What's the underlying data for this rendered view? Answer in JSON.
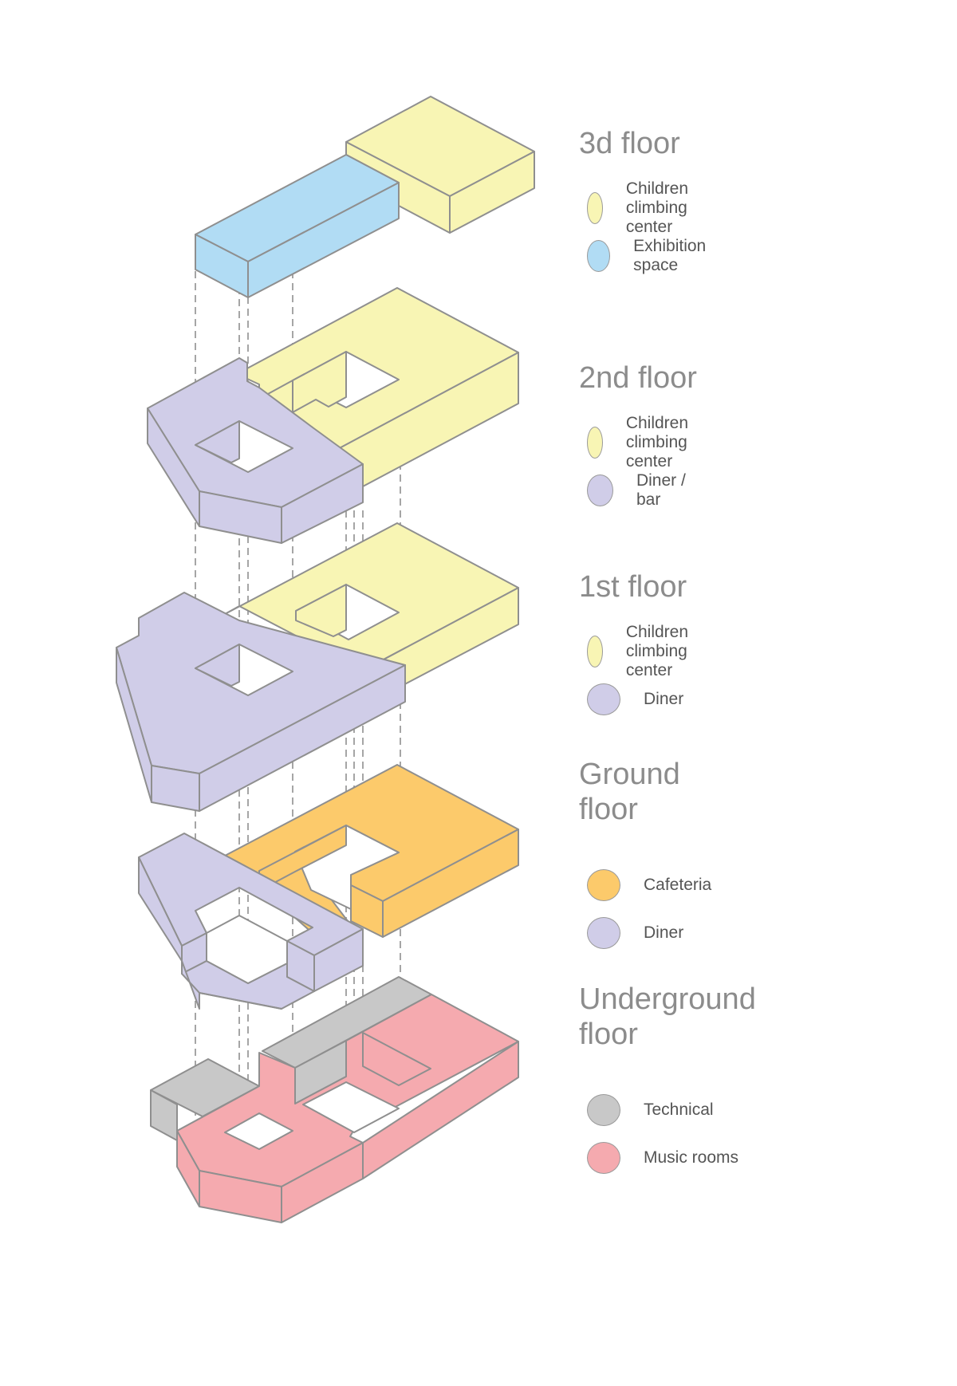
{
  "colors": {
    "climbing": "#f8f5b4",
    "exhibition": "#b1dcf4",
    "diner": "#d0cde8",
    "cafeteria": "#fcca6b",
    "technical": "#c8c8c8",
    "music": "#f5aaaf"
  },
  "floors": [
    {
      "title": "3d floor",
      "items": [
        {
          "label": "Children climbing center",
          "color": "#f8f5b4"
        },
        {
          "label": "Exhibition space",
          "color": "#b1dcf4"
        }
      ]
    },
    {
      "title": "2nd floor",
      "items": [
        {
          "label": "Children climbing center",
          "color": "#f8f5b4"
        },
        {
          "label": "Diner / bar",
          "color": "#d0cde8"
        }
      ]
    },
    {
      "title": "1st floor",
      "items": [
        {
          "label": "Children climbing center",
          "color": "#f8f5b4"
        },
        {
          "label": "Diner",
          "color": "#d0cde8"
        }
      ]
    },
    {
      "title": "Ground\nfloor",
      "items": [
        {
          "label": "Cafeteria",
          "color": "#fcca6b"
        },
        {
          "label": "Diner",
          "color": "#d0cde8"
        }
      ]
    },
    {
      "title": "Underground\nfloor",
      "items": [
        {
          "label": "Technical",
          "color": "#c8c8c8"
        },
        {
          "label": "Music rooms",
          "color": "#f5aaaf"
        }
      ]
    }
  ]
}
